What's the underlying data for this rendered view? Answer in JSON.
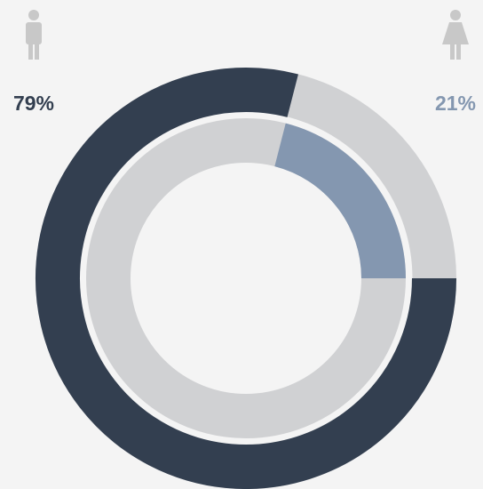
{
  "chart_data": {
    "type": "donut",
    "range": [
      0,
      100
    ],
    "track_color": "#d0d1d3",
    "series": [
      {
        "color": "#333f50",
        "values": [
          79
        ],
        "value_labels": [
          "79%"
        ]
      },
      {
        "color": "#8497b0",
        "values": [
          21
        ],
        "value_labels": [
          "21%"
        ]
      }
    ]
  }
}
